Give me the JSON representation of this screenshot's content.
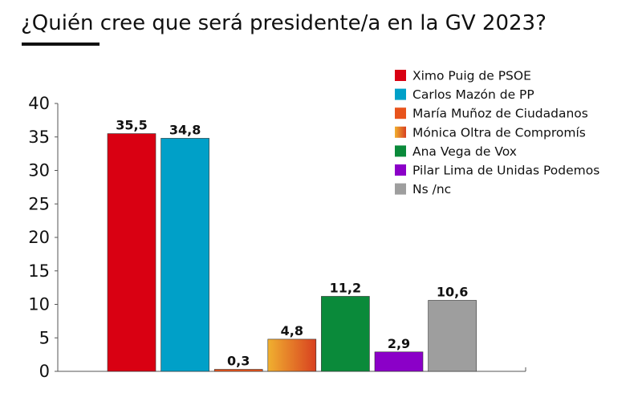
{
  "chart_data": {
    "type": "bar",
    "title": "¿Quién cree que será presidente/a en la GV 2023?",
    "xlabel": "",
    "ylabel": "",
    "ylim": [
      0,
      40
    ],
    "yticks": [
      "0",
      "5",
      "10",
      "15",
      "20",
      "25",
      "30",
      "35",
      "40"
    ],
    "grid": false,
    "legend_placement": "top-right",
    "categories": [
      "Ximo Puig de PSOE",
      "Carlos Mazón de PP",
      "María Muñoz de Ciudadanos",
      "Mónica Oltra de Compromís",
      "Ana Vega de Vox",
      "Pilar Lima de Unidas Podemos",
      "Ns /nc"
    ],
    "values": [
      35.5,
      34.8,
      0.3,
      4.8,
      11.2,
      2.9,
      10.6
    ],
    "value_labels": [
      "35,5",
      "34,8",
      "0,3",
      "4,8",
      "11,2",
      "2,9",
      "10,6"
    ],
    "colors": [
      "#d90012",
      "#00a0c8",
      "#e8531c",
      "gradient:#f0b030-#d84020",
      "#0a8a3a",
      "#8b00c8",
      "#9e9e9e"
    ]
  }
}
